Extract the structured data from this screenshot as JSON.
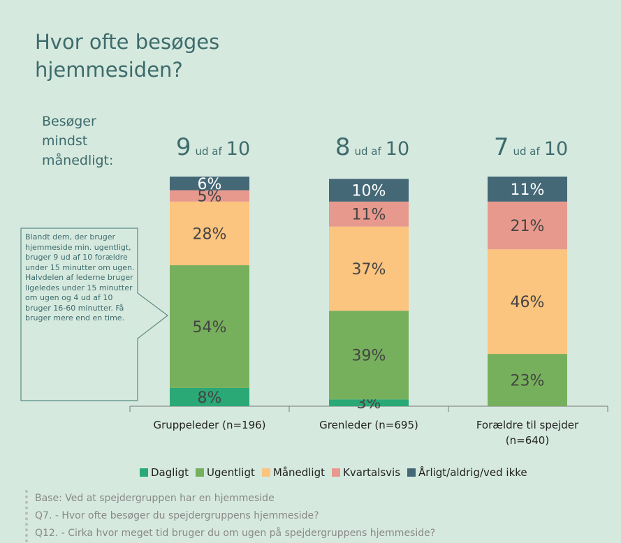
{
  "chart_data": {
    "type": "stacked_bar",
    "title": "Hvor ofte besøges hjemmesiden?",
    "side_label": "Besøger mindst månedligt:",
    "headlines": [
      {
        "count": 9,
        "of": "ud af",
        "total": 10
      },
      {
        "count": 8,
        "of": "ud af",
        "total": 10
      },
      {
        "count": 7,
        "of": "ud af",
        "total": 10
      }
    ],
    "callout": "Blandt dem, der bruger hjemmeside min. ugentligt, bruger 9 ud af 10 forældre under 15 minutter om ugen. Halvdelen af lederne bruger ligeledes under 15 minutter om ugen og 4 ud af 10 bruger 16-60 minutter. Få bruger mere end en time.",
    "categories": [
      "Gruppeleder (n=196)",
      "Grenleder (n=695)",
      "Forældre til spejder (n=640)"
    ],
    "series": [
      {
        "name": "Dagligt",
        "color": "#2aa876",
        "values": [
          8,
          3,
          null
        ],
        "value_labels": [
          "8%",
          "3%",
          null
        ]
      },
      {
        "name": "Ugentligt",
        "color": "#77b05c",
        "values": [
          54,
          39,
          23
        ],
        "value_labels": [
          "54%",
          "39%",
          "23%"
        ]
      },
      {
        "name": "Månedligt",
        "color": "#fbc47f",
        "values": [
          28,
          37,
          46
        ],
        "value_labels": [
          "28%",
          "37%",
          "46%"
        ]
      },
      {
        "name": "Kvartalsvis",
        "color": "#e8998d",
        "values": [
          5,
          11,
          21
        ],
        "value_labels": [
          "5%",
          "11%",
          "21%"
        ]
      },
      {
        "name": "Årligt/aldrig/ved ikke",
        "color": "#456877",
        "values": [
          6,
          10,
          11
        ],
        "value_labels": [
          "6%",
          "10%",
          "11%"
        ]
      }
    ],
    "notes": [
      "Base: Ved at spejdergruppen har en hjemmeside",
      "Q7. - Hvor ofte besøger du spejdergruppens hjemmeside?",
      "Q12. - Cirka hvor meget tid bruger du om ugen på spejdergruppens hjemmeside?"
    ]
  }
}
